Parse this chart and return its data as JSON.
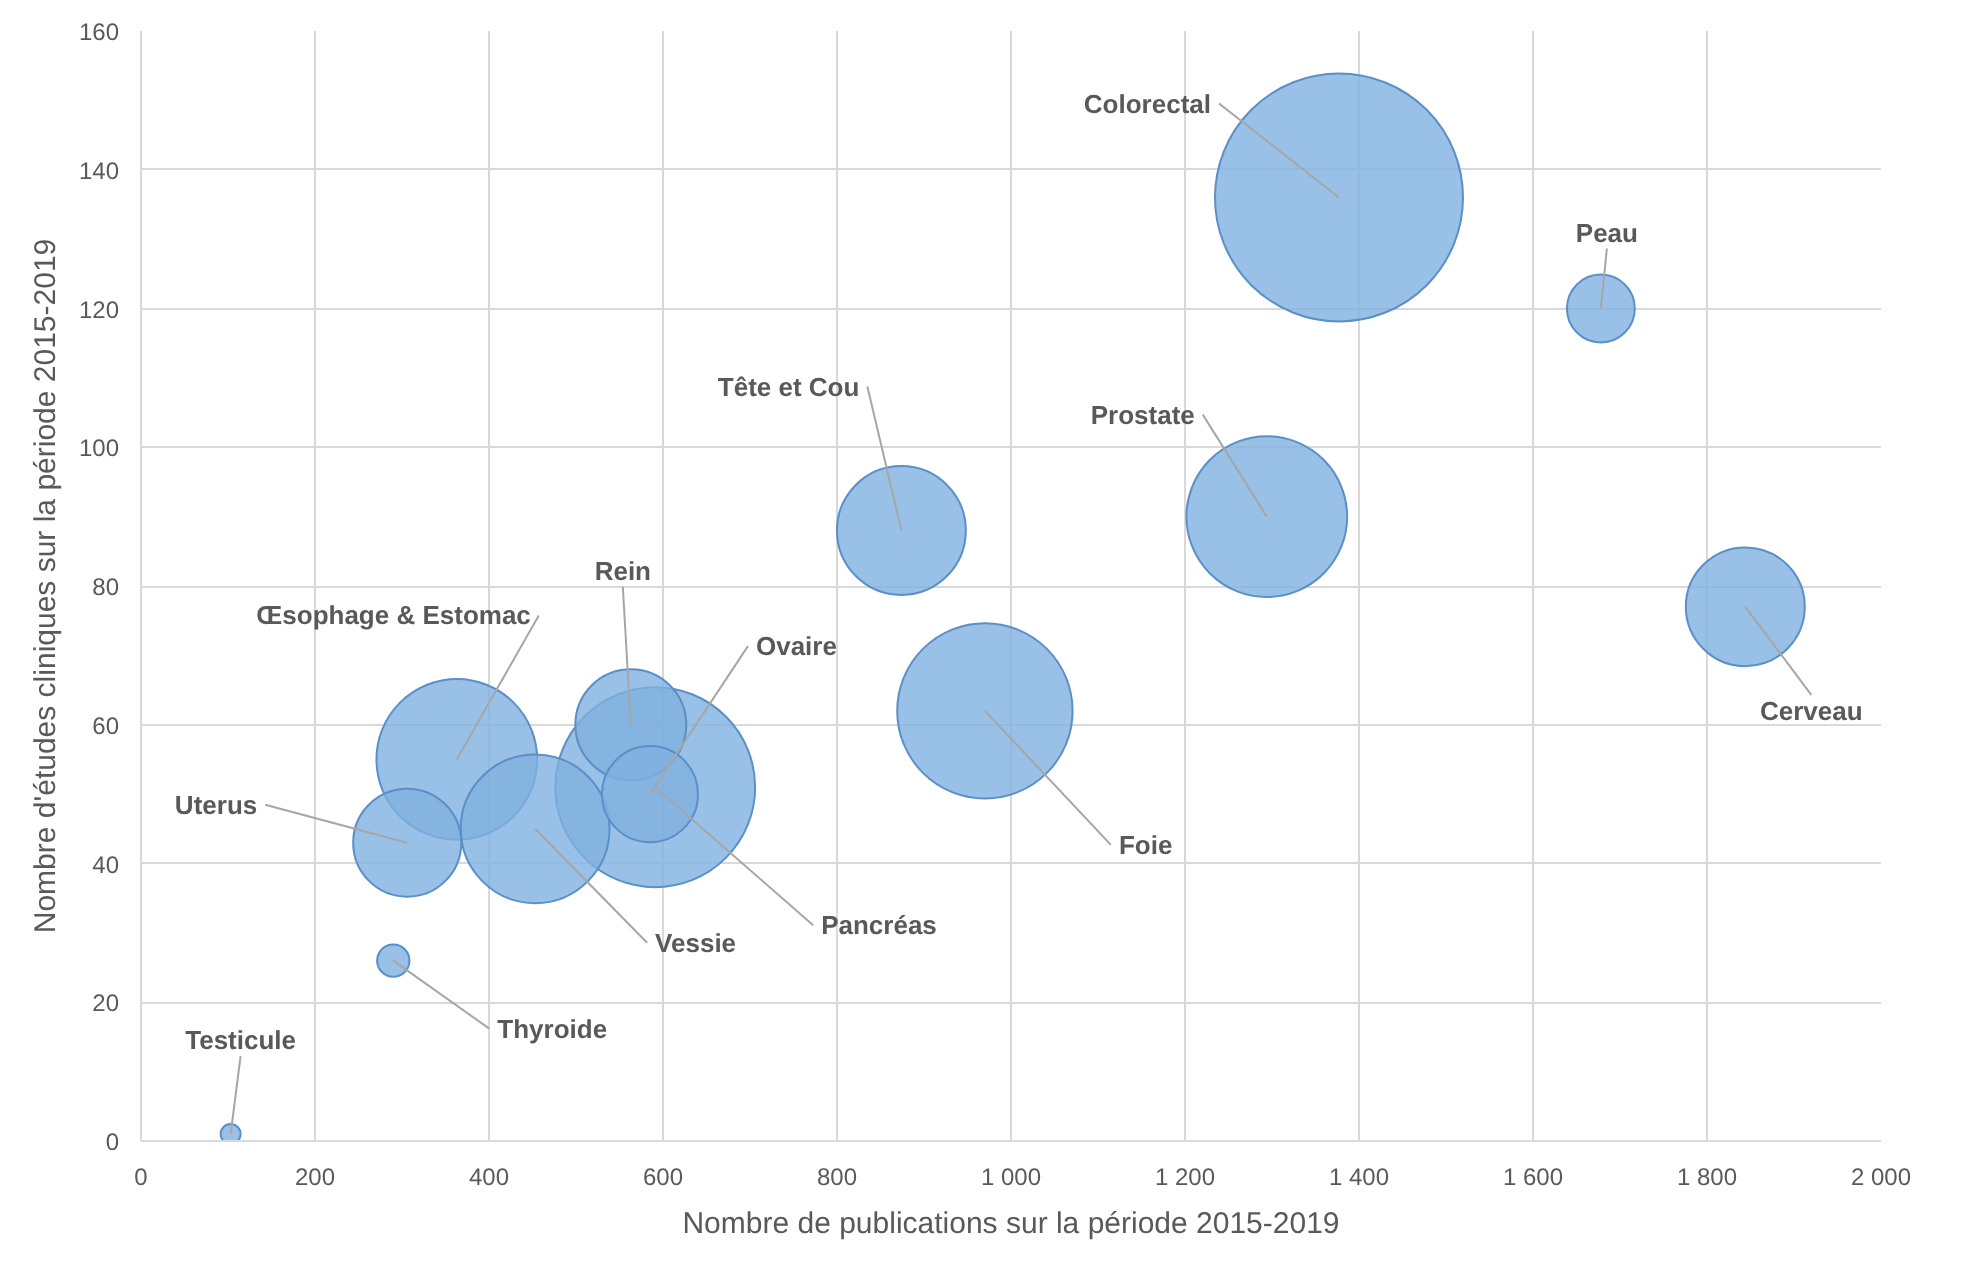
{
  "chart_data": {
    "type": "bubble",
    "xlabel": "Nombre de publications sur la période 2015-2019",
    "ylabel": "Nombre d'études cliniques sur la période 2015-2019",
    "x": [
      1377,
      1678,
      1294,
      1844,
      874,
      970,
      563,
      591,
      585,
      363,
      453,
      306,
      290,
      103
    ],
    "values": [
      136,
      120,
      90,
      77,
      88,
      62,
      60,
      51,
      50,
      55,
      45,
      43,
      26,
      1
    ],
    "sizes": [
      1,
      0.075,
      0.42,
      0.23,
      0.27,
      0.5,
      0.2,
      0.65,
      0.15,
      0.42,
      0.36,
      0.19,
      0.017,
      0.0065
    ],
    "color": "#7fb0e0",
    "annotations": [
      {
        "text": "Colorectal",
        "x": 1377,
        "y": 136
      },
      {
        "text": "Peau",
        "x": 1678,
        "y": 120
      },
      {
        "text": "Prostate",
        "x": 1294,
        "y": 90
      },
      {
        "text": "Cerveau",
        "x": 1844,
        "y": 77
      },
      {
        "text": "Tête et Cou",
        "x": 874,
        "y": 88
      },
      {
        "text": "Foie",
        "x": 970,
        "y": 62
      },
      {
        "text": "Rein",
        "x": 563,
        "y": 60
      },
      {
        "text": "Pancréas",
        "x": 591,
        "y": 51
      },
      {
        "text": "Ovaire",
        "x": 585,
        "y": 50
      },
      {
        "text": "Œsophage & Estomac",
        "x": 363,
        "y": 55
      },
      {
        "text": "Vessie",
        "x": 453,
        "y": 45
      },
      {
        "text": "Uterus",
        "x": 306,
        "y": 43
      },
      {
        "text": "Thyroide",
        "x": 290,
        "y": 26
      },
      {
        "text": "Testicule",
        "x": 103,
        "y": 1
      }
    ],
    "xlim": [
      0,
      2000
    ],
    "xticks": [
      0,
      200,
      400,
      600,
      800,
      {
        "value": 1000,
        "label": "1 000"
      },
      {
        "value": 1200,
        "label": "1 200"
      },
      {
        "value": 1400,
        "label": "1 400"
      },
      {
        "value": 1600,
        "label": "1 600"
      },
      {
        "value": 1800,
        "label": "1 800"
      },
      {
        "value": 2000,
        "label": "2 000"
      }
    ],
    "ylim": [
      0,
      160
    ],
    "yticks": [
      0,
      20,
      40,
      60,
      80,
      100,
      120,
      140,
      160
    ],
    "grid": true
  }
}
